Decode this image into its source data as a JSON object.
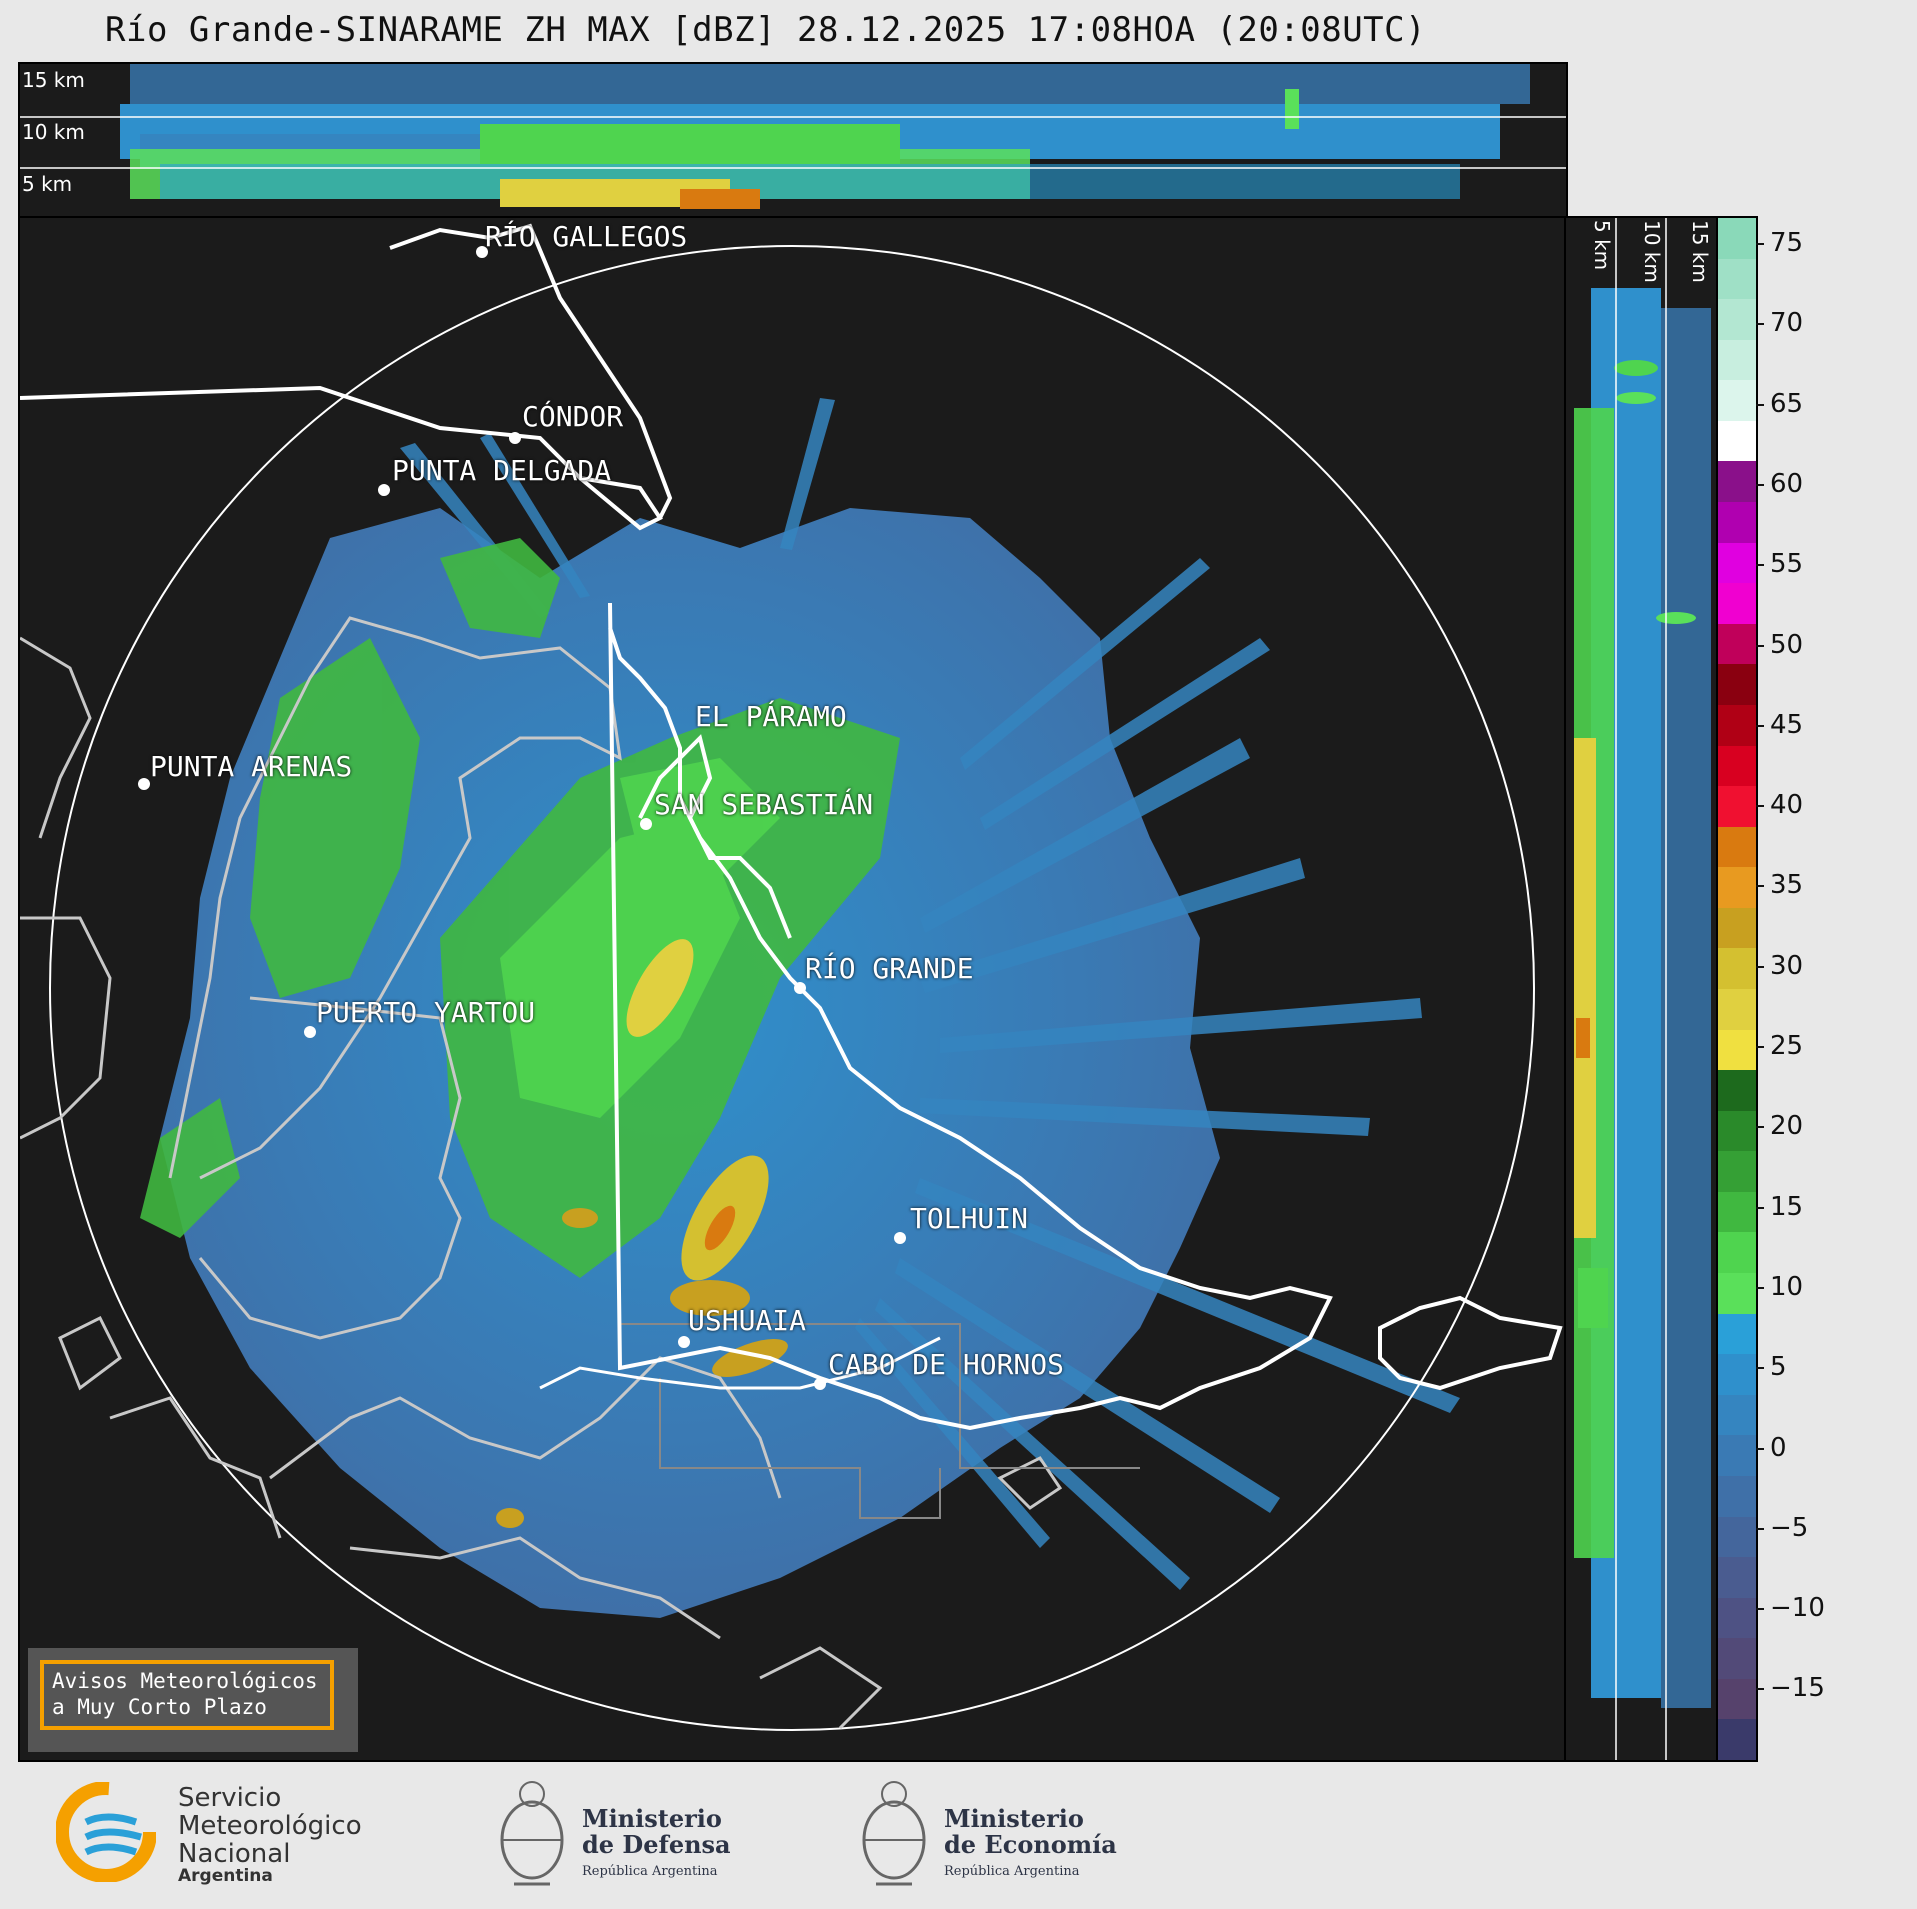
{
  "title": "Río Grande-SINARAME ZH MAX [dBZ] 28.12.2025 17:08HOA (20:08UTC)",
  "top_panel": {
    "height_labels": [
      "15 km",
      "10 km",
      "5 km"
    ]
  },
  "side_panel": {
    "height_labels": [
      "5 km",
      "10 km",
      "15 km"
    ]
  },
  "places": [
    {
      "name": "RÍO GALLEGOS"
    },
    {
      "name": "CÓNDOR"
    },
    {
      "name": "PUNTA DELGADA"
    },
    {
      "name": "EL PÁRAMO"
    },
    {
      "name": "PUNTA ARENAS"
    },
    {
      "name": "SAN SEBASTIÁN"
    },
    {
      "name": "RÍO GRANDE"
    },
    {
      "name": "PUERTO YARTOU"
    },
    {
      "name": "TOLHUIN"
    },
    {
      "name": "USHUAIA"
    },
    {
      "name": "CABO DE HORNOS"
    }
  ],
  "warning_box": {
    "text": "Avisos Meteorológicos\na Muy Corto Plazo",
    "border_color": "#f5a000"
  },
  "colorbar": {
    "ticks": [
      "75",
      "70",
      "65",
      "60",
      "55",
      "50",
      "45",
      "40",
      "35",
      "30",
      "25",
      "20",
      "15",
      "10",
      "5",
      "0",
      "−5",
      "−10",
      "−15"
    ],
    "colors": [
      "#8ad9b9",
      "#9fe0c6",
      "#b3e7d2",
      "#c8eedf",
      "#dcf5ec",
      "#ffffff",
      "#8a108a",
      "#b000b0",
      "#e000e0",
      "#f000d0",
      "#c0005a",
      "#8a0010",
      "#b00015",
      "#d80020",
      "#f01030",
      "#d97a10",
      "#e89a20",
      "#c8a020",
      "#d4c030",
      "#e0d040",
      "#f0e040",
      "#1d6a1d",
      "#2a8a2a",
      "#35a035",
      "#40b840",
      "#4fd44f",
      "#5ae05a",
      "#2aa0d8",
      "#2f90cc",
      "#3585c0",
      "#3a7ab4",
      "#3f70a8",
      "#44669c",
      "#4a5c90",
      "#4e5284",
      "#524a78",
      "#56426c",
      "#3a3a6a"
    ],
    "label_unit": "dBZ"
  },
  "footer": {
    "smn": {
      "lines": [
        "Servicio",
        "Meteorológico",
        "Nacional"
      ],
      "country": "Argentina",
      "color_a": "#f5a000",
      "color_b": "#2aa0d8"
    },
    "defensa": {
      "line1": "Ministerio",
      "line2": "de Defensa",
      "sub": "República Argentina"
    },
    "economia": {
      "line1": "Ministerio",
      "line2": "de Economía",
      "sub": "República Argentina"
    }
  }
}
